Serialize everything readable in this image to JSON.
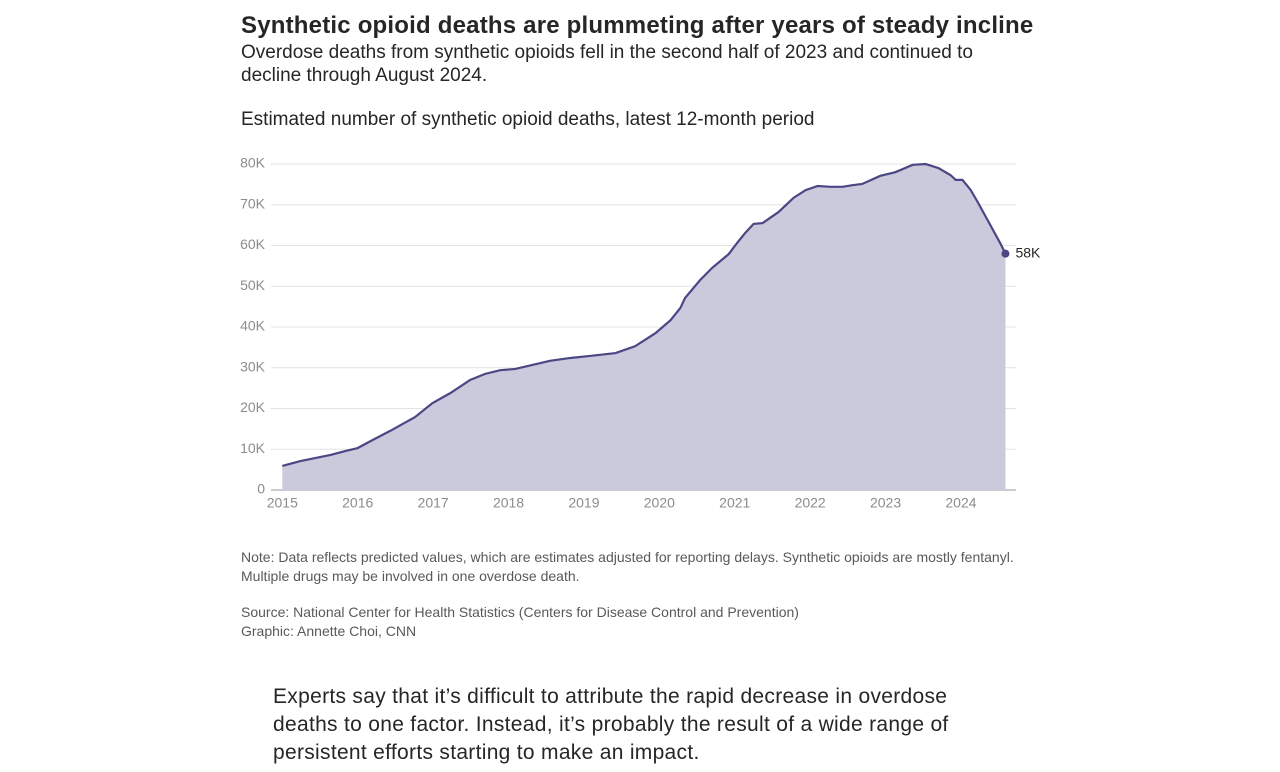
{
  "header": {
    "title": "Synthetic opioid deaths are plummeting after years of steady incline",
    "subtitle": "Overdose deaths from synthetic opioids fell in the second half of 2023 and continued to decline through August 2024."
  },
  "chart_data": {
    "type": "area",
    "title": "Estimated number of synthetic opioid deaths, latest 12-month period",
    "x": [
      2015.0,
      2015.24,
      2015.64,
      2015.84,
      2016.0,
      2016.17,
      2016.43,
      2016.76,
      2016.99,
      2017.23,
      2017.49,
      2017.69,
      2017.89,
      2018.09,
      2018.55,
      2018.82,
      2019.08,
      2019.42,
      2019.68,
      2019.95,
      2020.15,
      2020.28,
      2020.34,
      2020.54,
      2020.7,
      2020.92,
      2021.03,
      2021.14,
      2021.25,
      2021.37,
      2021.58,
      2021.78,
      2021.94,
      2022.1,
      2022.27,
      2022.43,
      2022.56,
      2022.69,
      2022.93,
      2023.13,
      2023.36,
      2023.53,
      2023.7,
      2023.86,
      2023.93,
      2024.02,
      2024.13,
      2024.23,
      2024.39,
      2024.52,
      2024.59
    ],
    "series": [
      {
        "name": "Synthetic opioid deaths",
        "color": "#4b4785",
        "fill": "#cbc9dc",
        "values": [
          5900,
          7100,
          8600,
          9600,
          10300,
          12000,
          14500,
          17900,
          21300,
          23800,
          27000,
          28500,
          29400,
          29700,
          31700,
          32400,
          32900,
          33600,
          35300,
          38500,
          41700,
          44700,
          47100,
          51500,
          54500,
          57900,
          60600,
          63100,
          65300,
          65500,
          68200,
          71700,
          73600,
          74600,
          74400,
          74400,
          74800,
          75100,
          77100,
          78000,
          79800,
          80000,
          79000,
          77300,
          76100,
          76100,
          73600,
          70400,
          65000,
          60600,
          58000
        ],
        "value_labels": [
          null,
          null,
          null,
          null,
          null,
          null,
          null,
          null,
          null,
          null,
          null,
          null,
          null,
          null,
          null,
          null,
          null,
          null,
          null,
          null,
          null,
          null,
          null,
          null,
          null,
          null,
          null,
          null,
          null,
          null,
          null,
          null,
          null,
          null,
          null,
          null,
          null,
          null,
          null,
          null,
          null,
          null,
          null,
          null,
          null,
          null,
          null,
          null,
          null,
          null,
          "58K"
        ]
      }
    ],
    "xlim": [
      2014.85,
      2024.73
    ],
    "xticks": [
      2015,
      2016,
      2017,
      2018,
      2019,
      2020,
      2021,
      2022,
      2023,
      2024
    ],
    "ylim": [
      0,
      80000
    ],
    "yticks": [
      0,
      {
        "value": 10000,
        "label": "10K"
      },
      {
        "value": 20000,
        "label": "20K"
      },
      {
        "value": 30000,
        "label": "30K"
      },
      {
        "value": 40000,
        "label": "40K"
      },
      {
        "value": 50000,
        "label": "50K"
      },
      {
        "value": 60000,
        "label": "60K"
      },
      {
        "value": 70000,
        "label": "70K"
      },
      {
        "value": 80000,
        "label": "80K"
      }
    ],
    "grid": true
  },
  "note": "Note: Data reflects predicted values, which are estimates adjusted for reporting delays. Synthetic opioids are mostly fentanyl. Multiple drugs may be involved in one overdose death.",
  "source": "Source: National Center for Health Statistics (Centers for Disease Control and Prevention)",
  "credit": "Graphic: Annette Choi, CNN",
  "body": "Experts say that it’s difficult to attribute the rapid decrease in overdose deaths to one factor. Instead, it’s probably the result of a wide range of persistent efforts starting to make an impact."
}
